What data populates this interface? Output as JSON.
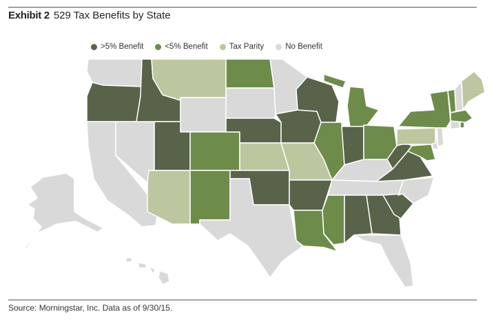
{
  "header": {
    "exhibit": "Exhibit 2",
    "title": "529 Tax Benefits by State"
  },
  "legend": [
    {
      "key": "gt5",
      "label": ">5% Benefit",
      "color": "#58634a"
    },
    {
      "key": "lt5",
      "label": "<5% Benefit",
      "color": "#6d8c4a"
    },
    {
      "key": "parity",
      "label": "Tax Parity",
      "color": "#bcc79f"
    },
    {
      "key": "none",
      "label": "No Benefit",
      "color": "#d9d9d9"
    }
  ],
  "states": [
    {
      "id": "WA",
      "category": "none"
    },
    {
      "id": "OR",
      "category": "gt5"
    },
    {
      "id": "CA",
      "category": "none"
    },
    {
      "id": "NV",
      "category": "none"
    },
    {
      "id": "ID",
      "category": "gt5"
    },
    {
      "id": "MT",
      "category": "parity"
    },
    {
      "id": "WY",
      "category": "none"
    },
    {
      "id": "UT",
      "category": "gt5"
    },
    {
      "id": "AZ",
      "category": "parity"
    },
    {
      "id": "CO",
      "category": "lt5"
    },
    {
      "id": "NM",
      "category": "lt5"
    },
    {
      "id": "ND",
      "category": "lt5"
    },
    {
      "id": "SD",
      "category": "none"
    },
    {
      "id": "NE",
      "category": "gt5"
    },
    {
      "id": "KS",
      "category": "parity"
    },
    {
      "id": "OK",
      "category": "gt5"
    },
    {
      "id": "TX",
      "category": "none"
    },
    {
      "id": "MN",
      "category": "none"
    },
    {
      "id": "IA",
      "category": "gt5"
    },
    {
      "id": "MO",
      "category": "parity"
    },
    {
      "id": "AR",
      "category": "gt5"
    },
    {
      "id": "LA",
      "category": "lt5"
    },
    {
      "id": "WI",
      "category": "gt5"
    },
    {
      "id": "IL",
      "category": "lt5"
    },
    {
      "id": "MI",
      "category": "lt5"
    },
    {
      "id": "IN",
      "category": "gt5"
    },
    {
      "id": "OH",
      "category": "lt5"
    },
    {
      "id": "KY",
      "category": "none"
    },
    {
      "id": "TN",
      "category": "none"
    },
    {
      "id": "MS",
      "category": "lt5"
    },
    {
      "id": "AL",
      "category": "gt5"
    },
    {
      "id": "GA",
      "category": "gt5"
    },
    {
      "id": "FL",
      "category": "none"
    },
    {
      "id": "SC",
      "category": "gt5"
    },
    {
      "id": "NC",
      "category": "none"
    },
    {
      "id": "VA",
      "category": "gt5"
    },
    {
      "id": "WV",
      "category": "gt5"
    },
    {
      "id": "MD",
      "category": "lt5"
    },
    {
      "id": "DE",
      "category": "none"
    },
    {
      "id": "PA",
      "category": "parity"
    },
    {
      "id": "NJ",
      "category": "none"
    },
    {
      "id": "NY",
      "category": "lt5"
    },
    {
      "id": "CT",
      "category": "none"
    },
    {
      "id": "RI",
      "category": "lt5"
    },
    {
      "id": "MA",
      "category": "lt5"
    },
    {
      "id": "VT",
      "category": "lt5"
    },
    {
      "id": "NH",
      "category": "none"
    },
    {
      "id": "ME",
      "category": "parity"
    },
    {
      "id": "AK",
      "category": "none"
    },
    {
      "id": "HI",
      "category": "none"
    }
  ],
  "footer": {
    "source": "Source: Morningstar, Inc. Data as of 9/30/15."
  }
}
